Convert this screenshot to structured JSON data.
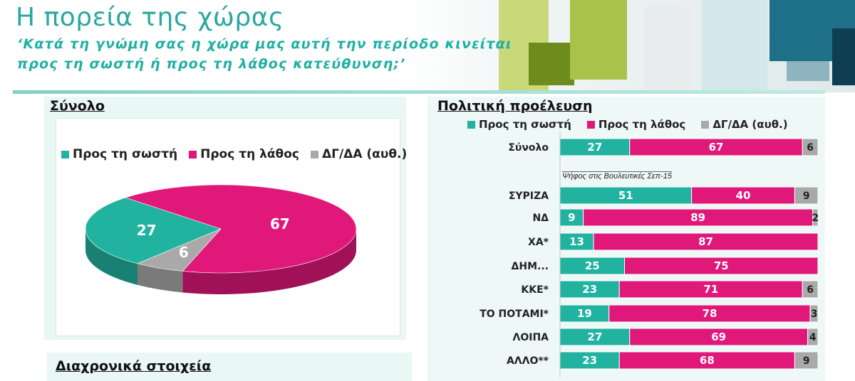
{
  "header": {
    "title": "Η πορεία της χώρας",
    "subtitle_line1": "‘Κατά τη γνώμη σας η χώρα μας αυτή την περίοδο κινείται",
    "subtitle_line2": "προς τη σωστή ή προς τη λάθος κατεύθυνση;’"
  },
  "colors": {
    "right_direction": "#22b3a0",
    "wrong_direction": "#e0187a",
    "dk_na": "#a9a9a9",
    "accent": "#2aa8a0"
  },
  "left_panel": {
    "heading": "Σύνολο",
    "legend": [
      "Προς τη σωστή",
      "Προς τη λάθος",
      "ΔΓ/ΔΑ (αυθ.)"
    ]
  },
  "history_panel": {
    "heading": "Διαχρονικά στοιχεία"
  },
  "right_panel": {
    "heading": "Πολιτική προέλευση",
    "legend": [
      "Προς τη σωστή",
      "Προς τη λάθος",
      "ΔΓ/ΔΑ (αυθ.)"
    ],
    "vote_note": "Ψήφος στις Βουλευτικές Σεπ-15"
  },
  "chart_data": [
    {
      "type": "pie",
      "categories": [
        "Προς τη σωστή",
        "Προς τη λάθος",
        "ΔΓ/ΔΑ (αυθ.)"
      ],
      "values": [
        27,
        67,
        6
      ],
      "legend": "top"
    },
    {
      "type": "bar",
      "orientation": "horizontal",
      "stacked": true,
      "categories": [
        "Σύνολο",
        "ΣΥΡΙΖΑ",
        "ΝΔ",
        "ΧΑ*",
        "ΔΗΜ...",
        "ΚΚΕ*",
        "ΤΟ ΠΟΤΑΜΙ*",
        "ΛΟΙΠΑ",
        "ΑΛΛΟ**"
      ],
      "series": [
        {
          "name": "Προς τη σωστή",
          "values": [
            27,
            51,
            9,
            13,
            25,
            23,
            19,
            27,
            23
          ]
        },
        {
          "name": "Προς τη λάθος",
          "values": [
            67,
            40,
            89,
            87,
            75,
            71,
            78,
            69,
            68
          ]
        },
        {
          "name": "ΔΓ/ΔΑ (αυθ.)",
          "values": [
            6,
            9,
            2,
            null,
            null,
            6,
            3,
            4,
            9
          ]
        }
      ],
      "xlim": [
        0,
        100
      ],
      "legend": "top"
    }
  ]
}
